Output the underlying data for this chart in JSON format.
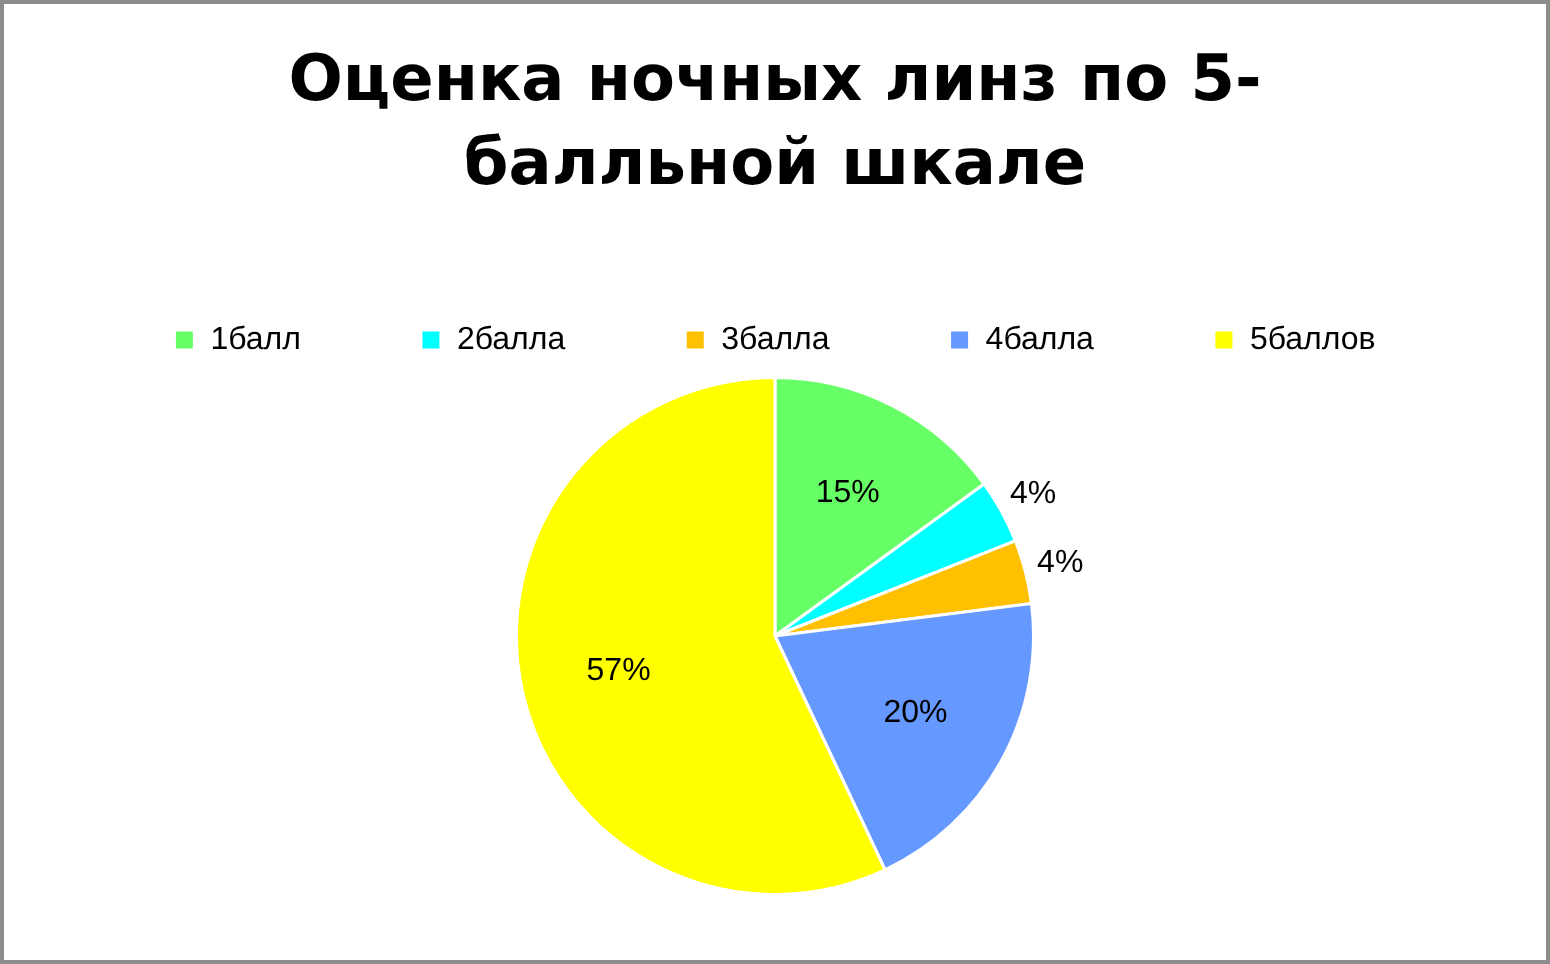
{
  "chart_data": {
    "type": "pie",
    "title": "Оценка ночных линз по 5-балльной шкале",
    "categories": [
      "1балл",
      "2балла",
      "3балла",
      "4балла",
      "5баллов"
    ],
    "values": [
      15,
      4,
      4,
      20,
      57
    ],
    "value_labels": [
      "15%",
      "4%",
      "4%",
      "20%",
      "57%"
    ],
    "colors": [
      "#66ff66",
      "#00ffff",
      "#ffc000",
      "#6699ff",
      "#ffff00"
    ],
    "legend": "top"
  }
}
